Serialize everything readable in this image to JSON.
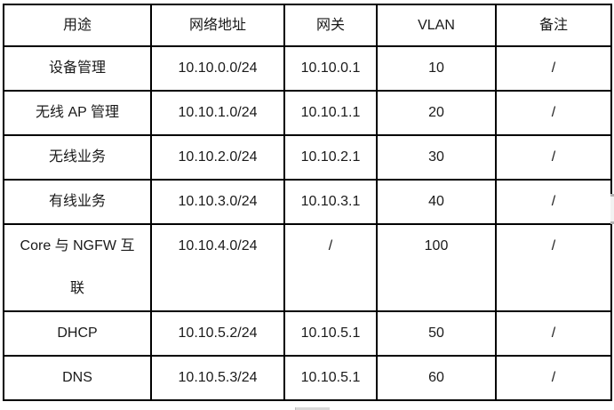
{
  "chart_data": {
    "type": "table",
    "title": "",
    "columns": [
      "用途",
      "网络地址",
      "网关",
      "VLAN",
      "备注"
    ],
    "rows": [
      [
        "设备管理",
        "10.10.0.0/24",
        "10.10.0.1",
        "10",
        "/"
      ],
      [
        "无线 AP 管理",
        "10.10.1.0/24",
        "10.10.1.1",
        "20",
        "/"
      ],
      [
        "无线业务",
        "10.10.2.0/24",
        "10.10.2.1",
        "30",
        "/"
      ],
      [
        "有线业务",
        "10.10.3.0/24",
        "10.10.3.1",
        "40",
        "/"
      ],
      [
        "Core 与 NGFW 互\n联",
        "10.10.4.0/24",
        "/",
        "100",
        "/"
      ],
      [
        "DHCP",
        "10.10.5.2/24",
        "10.10.5.1",
        "50",
        "/"
      ],
      [
        "DNS",
        "10.10.5.3/24",
        "10.10.5.1",
        "60",
        "/"
      ]
    ]
  },
  "colors": {
    "border": "#000000",
    "text": "#1a1a1a",
    "background": "#ffffff",
    "scrollbar_track": "#f2f2f2",
    "scrollbar_tick": "#b3b3b3",
    "bottom_artifact": "#d9d9d9"
  }
}
